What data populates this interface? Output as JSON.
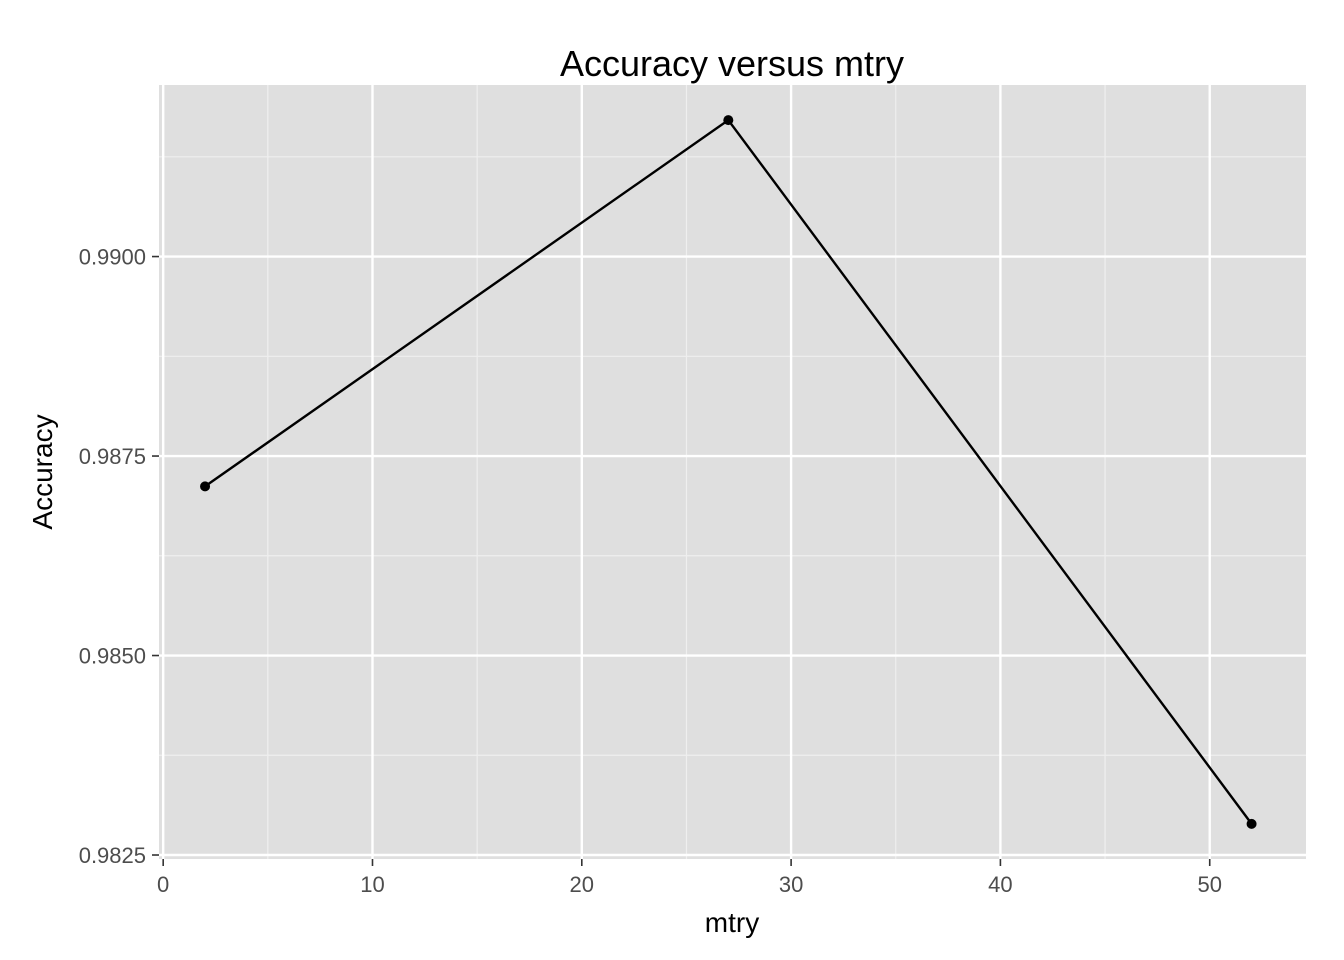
{
  "chart_data": {
    "type": "line",
    "title": "Accuracy versus mtry",
    "xlabel": "mtry",
    "ylabel": "Accuracy",
    "x": [
      2,
      27,
      52
    ],
    "y": [
      0.98712,
      0.99171,
      0.98289
    ],
    "xlim": [
      -0.2,
      54.6
    ],
    "ylim": [
      0.98245,
      0.99215
    ],
    "xticks": [
      0,
      10,
      20,
      30,
      40,
      50
    ],
    "yticks": [
      0.9825,
      0.985,
      0.9875,
      0.99
    ],
    "xtick_labels": [
      "0",
      "10",
      "20",
      "30",
      "40",
      "50"
    ],
    "ytick_labels": [
      "0.9825",
      "0.9850",
      "0.9875",
      "0.9900"
    ],
    "grid": true,
    "colors": {
      "panel_background": "#dfdfdf",
      "grid_major": "#ffffff",
      "grid_minor": "#efefef",
      "line": "#000000",
      "point": "#000000",
      "tick_text": "#4d4d4d"
    }
  }
}
